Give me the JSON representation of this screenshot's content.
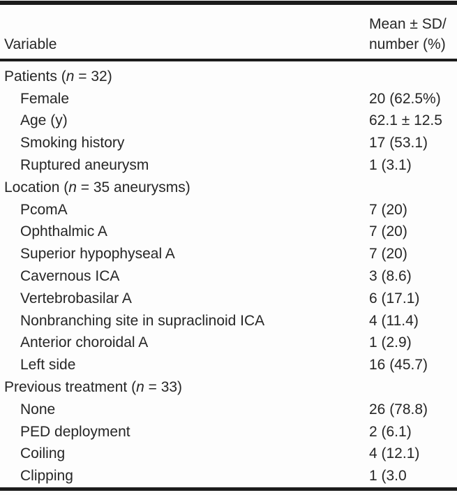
{
  "table": {
    "header": {
      "variable": "Variable",
      "value_line1": "Mean ± SD/",
      "value_line2": "number (%)"
    },
    "rows": [
      {
        "label": "Patients (n = 32)",
        "value": "",
        "indent": false
      },
      {
        "label": "Female",
        "value": "20 (62.5%)",
        "indent": true
      },
      {
        "label": "Age (y)",
        "value": "62.1 ± 12.5",
        "indent": true
      },
      {
        "label": "Smoking history",
        "value": "17 (53.1)",
        "indent": true
      },
      {
        "label": "Ruptured aneurysm",
        "value": "1 (3.1)",
        "indent": true
      },
      {
        "label": "Location (n = 35 aneurysms)",
        "value": "",
        "indent": false
      },
      {
        "label": "PcomA",
        "value": "7 (20)",
        "indent": true
      },
      {
        "label": "Ophthalmic A",
        "value": "7 (20)",
        "indent": true
      },
      {
        "label": "Superior hypophyseal A",
        "value": "7 (20)",
        "indent": true
      },
      {
        "label": "Cavernous ICA",
        "value": "3 (8.6)",
        "indent": true
      },
      {
        "label": "Vertebrobasilar A",
        "value": "6 (17.1)",
        "indent": true
      },
      {
        "label": "Nonbranching site in supraclinoid ICA",
        "value": "4 (11.4)",
        "indent": true
      },
      {
        "label": "Anterior choroidal A",
        "value": "1 (2.9)",
        "indent": true
      },
      {
        "label": "Left side",
        "value": "16 (45.7)",
        "indent": true
      },
      {
        "label": "Previous treatment (n = 33)",
        "value": "",
        "indent": false
      },
      {
        "label": "None",
        "value": "26 (78.8)",
        "indent": true
      },
      {
        "label": "PED deployment",
        "value": "2 (6.1)",
        "indent": true
      },
      {
        "label": "Coiling",
        "value": "4 (12.1)",
        "indent": true
      },
      {
        "label": "Clipping",
        "value": "1 (3.0",
        "indent": true
      }
    ]
  }
}
